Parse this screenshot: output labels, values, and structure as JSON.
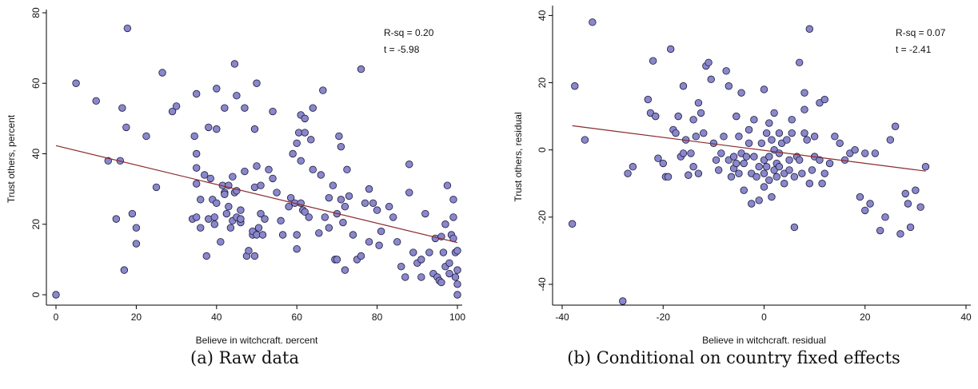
{
  "chart_data": [
    {
      "type": "scatter",
      "caption": "(a) Raw data",
      "xlabel": "Believe in witchcraft, percent",
      "ylabel": "Trust others, percent",
      "xlim": [
        0,
        100
      ],
      "ylim": [
        0,
        80
      ],
      "xticks": [
        0,
        20,
        40,
        60,
        80,
        100
      ],
      "yticks": [
        0,
        20,
        40,
        60,
        80
      ],
      "stats": [
        "R-sq = 0.20",
        "t = -5.98"
      ],
      "fit": {
        "x1": 0,
        "y1": 42.3,
        "x2": 100,
        "y2": 14.8
      },
      "colors": {
        "point_fill": "#8a87cc",
        "point_edge": "#1a1a3a",
        "fit_line": "#8b2a2a"
      },
      "points": [
        [
          0,
          0
        ],
        [
          5,
          60
        ],
        [
          10,
          55
        ],
        [
          13,
          38
        ],
        [
          15,
          21.5
        ],
        [
          16,
          38
        ],
        [
          16.5,
          53
        ],
        [
          17,
          7
        ],
        [
          17.5,
          47.5
        ],
        [
          17.8,
          75.6
        ],
        [
          19,
          23
        ],
        [
          20,
          19
        ],
        [
          20,
          14.5
        ],
        [
          22.5,
          45
        ],
        [
          25,
          30.5
        ],
        [
          26.5,
          63
        ],
        [
          29,
          52
        ],
        [
          30,
          53.5
        ],
        [
          34,
          21.5
        ],
        [
          34.5,
          45
        ],
        [
          35,
          57
        ],
        [
          35,
          40
        ],
        [
          35,
          36
        ],
        [
          35,
          31.5
        ],
        [
          35,
          22
        ],
        [
          36,
          19
        ],
        [
          36,
          27
        ],
        [
          37,
          34
        ],
        [
          37.5,
          11
        ],
        [
          38,
          47.5
        ],
        [
          38,
          21.5
        ],
        [
          38.5,
          33
        ],
        [
          39,
          27
        ],
        [
          39.5,
          20
        ],
        [
          39.5,
          22
        ],
        [
          40,
          47
        ],
        [
          40,
          58.5
        ],
        [
          40,
          26
        ],
        [
          41,
          15
        ],
        [
          41.5,
          31
        ],
        [
          42,
          53
        ],
        [
          42,
          29
        ],
        [
          42,
          28.5
        ],
        [
          42.5,
          23
        ],
        [
          43,
          31
        ],
        [
          43,
          25
        ],
        [
          43.5,
          19
        ],
        [
          44,
          21
        ],
        [
          44,
          33.5
        ],
        [
          44.5,
          29
        ],
        [
          44.5,
          65.5
        ],
        [
          45,
          56.5
        ],
        [
          45,
          22
        ],
        [
          45,
          29.5
        ],
        [
          46,
          24
        ],
        [
          46,
          20.5
        ],
        [
          46,
          21.5
        ],
        [
          47,
          53
        ],
        [
          47,
          35
        ],
        [
          47.5,
          11
        ],
        [
          48,
          12.5
        ],
        [
          49,
          17
        ],
        [
          49,
          18
        ],
        [
          49.5,
          11
        ],
        [
          49.5,
          47
        ],
        [
          49.5,
          30.5
        ],
        [
          50,
          36.5
        ],
        [
          50,
          17
        ],
        [
          50,
          60
        ],
        [
          50.5,
          19
        ],
        [
          51,
          23
        ],
        [
          51,
          31
        ],
        [
          51.5,
          17
        ],
        [
          52,
          21.5
        ],
        [
          53,
          35.5
        ],
        [
          54,
          52
        ],
        [
          54,
          33
        ],
        [
          55,
          29
        ],
        [
          56,
          21
        ],
        [
          56.5,
          17
        ],
        [
          58,
          25
        ],
        [
          58.5,
          27.5
        ],
        [
          59,
          40
        ],
        [
          59.5,
          26
        ],
        [
          60,
          43
        ],
        [
          60,
          17
        ],
        [
          60,
          13
        ],
        [
          60.5,
          46
        ],
        [
          61,
          26
        ],
        [
          61,
          51
        ],
        [
          61,
          38
        ],
        [
          61.5,
          24
        ],
        [
          62,
          50
        ],
        [
          62,
          46
        ],
        [
          62,
          23.5
        ],
        [
          63,
          22
        ],
        [
          63.5,
          44
        ],
        [
          64,
          35.5
        ],
        [
          64,
          53
        ],
        [
          65.5,
          17.5
        ],
        [
          66,
          34
        ],
        [
          66.5,
          58
        ],
        [
          67,
          22
        ],
        [
          68,
          19
        ],
        [
          68,
          27.5
        ],
        [
          69,
          31
        ],
        [
          69.5,
          10
        ],
        [
          70,
          23
        ],
        [
          70,
          10
        ],
        [
          70.5,
          45
        ],
        [
          71,
          42
        ],
        [
          71,
          27
        ],
        [
          71.5,
          20.5
        ],
        [
          72,
          25
        ],
        [
          72,
          7
        ],
        [
          72.5,
          35.5
        ],
        [
          73,
          28
        ],
        [
          74,
          17
        ],
        [
          75,
          10
        ],
        [
          76,
          64
        ],
        [
          76,
          11
        ],
        [
          77,
          26
        ],
        [
          78,
          30
        ],
        [
          78,
          15
        ],
        [
          79,
          26
        ],
        [
          80,
          24
        ],
        [
          80.5,
          14
        ],
        [
          81,
          18
        ],
        [
          83,
          25
        ],
        [
          84,
          22
        ],
        [
          85,
          15
        ],
        [
          86,
          8
        ],
        [
          87,
          5
        ],
        [
          88,
          37
        ],
        [
          88,
          29
        ],
        [
          89,
          12
        ],
        [
          90,
          9
        ],
        [
          91,
          5
        ],
        [
          91,
          10
        ],
        [
          92,
          23
        ],
        [
          93,
          12
        ],
        [
          94,
          6
        ],
        [
          94.5,
          16
        ],
        [
          95,
          5
        ],
        [
          95.5,
          4
        ],
        [
          96,
          16.5
        ],
        [
          96,
          3.5
        ],
        [
          96.5,
          12
        ],
        [
          97,
          20
        ],
        [
          97,
          8
        ],
        [
          97.5,
          31
        ],
        [
          98,
          9
        ],
        [
          98,
          6
        ],
        [
          98.5,
          17
        ],
        [
          99,
          27
        ],
        [
          99,
          22
        ],
        [
          99,
          16
        ],
        [
          99.5,
          5
        ],
        [
          99.5,
          12
        ],
        [
          100,
          3
        ],
        [
          100,
          7
        ],
        [
          100,
          12.5
        ],
        [
          100,
          0
        ]
      ]
    },
    {
      "type": "scatter",
      "caption": "(b) Conditional on country fixed effects",
      "xlabel": "Believe in witchcraft, residual",
      "ylabel": "Trust others, residual",
      "xlim": [
        -40,
        40
      ],
      "ylim": [
        -45,
        42
      ],
      "xticks": [
        -40,
        -20,
        0,
        20,
        40
      ],
      "yticks": [
        -40,
        -20,
        0,
        20,
        40
      ],
      "stats": [
        "R-sq = 0.07",
        "t = -2.41"
      ],
      "fit": {
        "x1": -38,
        "y1": 7.2,
        "x2": 32,
        "y2": -6.3
      },
      "colors": {
        "point_fill": "#8a87cc",
        "point_edge": "#1a1a3a",
        "fit_line": "#8b2a2a"
      },
      "points": [
        [
          -38,
          -22
        ],
        [
          -37.5,
          19
        ],
        [
          -35.5,
          3
        ],
        [
          -34,
          38
        ],
        [
          -28,
          -45
        ],
        [
          -27,
          -7
        ],
        [
          -26,
          -5
        ],
        [
          -23,
          15
        ],
        [
          -22.5,
          11
        ],
        [
          -22,
          26.5
        ],
        [
          -21.5,
          10
        ],
        [
          -21,
          -2.5
        ],
        [
          -20,
          -4
        ],
        [
          -19.5,
          -8
        ],
        [
          -19,
          -8
        ],
        [
          -18.5,
          30
        ],
        [
          -18,
          6
        ],
        [
          -17.5,
          5
        ],
        [
          -17,
          10
        ],
        [
          -16.5,
          -2
        ],
        [
          -16,
          -1
        ],
        [
          -16,
          19
        ],
        [
          -15.5,
          3
        ],
        [
          -15,
          -7.5
        ],
        [
          -14.5,
          -1
        ],
        [
          -14,
          9
        ],
        [
          -14,
          -5
        ],
        [
          -13.5,
          4
        ],
        [
          -13,
          14
        ],
        [
          -13,
          -7
        ],
        [
          -12.5,
          11
        ],
        [
          -12,
          5
        ],
        [
          -11.5,
          25
        ],
        [
          -11,
          26
        ],
        [
          -10.5,
          21
        ],
        [
          -10,
          2
        ],
        [
          -9.5,
          -3
        ],
        [
          -9,
          -6
        ],
        [
          -8.5,
          -1
        ],
        [
          -8,
          4
        ],
        [
          -7.5,
          23.5
        ],
        [
          -7,
          19
        ],
        [
          -7,
          -3
        ],
        [
          -6.5,
          -8
        ],
        [
          -6,
          -5.5
        ],
        [
          -6,
          -2
        ],
        [
          -5.5,
          10
        ],
        [
          -5.5,
          -4
        ],
        [
          -5,
          -7
        ],
        [
          -5,
          4
        ],
        [
          -4.5,
          -1
        ],
        [
          -4.5,
          17
        ],
        [
          -4,
          -12
        ],
        [
          -4,
          -4
        ],
        [
          -3.5,
          -2
        ],
        [
          -3,
          6
        ],
        [
          -3,
          2
        ],
        [
          -2.5,
          -16
        ],
        [
          -2.5,
          -7
        ],
        [
          -2,
          9
        ],
        [
          -2,
          -2
        ],
        [
          -1.5,
          -8
        ],
        [
          -1,
          -5
        ],
        [
          -1,
          -15
        ],
        [
          -0.5,
          2
        ],
        [
          0,
          18
        ],
        [
          0,
          -3
        ],
        [
          0,
          -11
        ],
        [
          0,
          -7
        ],
        [
          0.5,
          5
        ],
        [
          0.5,
          -5
        ],
        [
          1,
          -9
        ],
        [
          1,
          -2
        ],
        [
          1,
          8
        ],
        [
          1.5,
          -14
        ],
        [
          1.5,
          3
        ],
        [
          2,
          -6
        ],
        [
          2,
          11
        ],
        [
          2,
          0
        ],
        [
          2.5,
          -4
        ],
        [
          2.5,
          -8
        ],
        [
          3,
          5
        ],
        [
          3,
          -5
        ],
        [
          3,
          -1
        ],
        [
          3.5,
          2
        ],
        [
          4,
          -7
        ],
        [
          4,
          -10
        ],
        [
          4.5,
          3
        ],
        [
          5,
          -6
        ],
        [
          5,
          -3
        ],
        [
          5.5,
          9
        ],
        [
          5.5,
          5
        ],
        [
          6,
          -8
        ],
        [
          6,
          -23
        ],
        [
          6.5,
          -2
        ],
        [
          7,
          -3
        ],
        [
          7,
          26
        ],
        [
          7.5,
          -7
        ],
        [
          8,
          17
        ],
        [
          8,
          12
        ],
        [
          8,
          5
        ],
        [
          8.5,
          3
        ],
        [
          9,
          36
        ],
        [
          9,
          -10
        ],
        [
          9.5,
          -6
        ],
        [
          10,
          4
        ],
        [
          10,
          -2
        ],
        [
          11,
          14
        ],
        [
          11,
          -3
        ],
        [
          11.5,
          -10
        ],
        [
          12,
          15
        ],
        [
          12,
          -7
        ],
        [
          13,
          -4
        ],
        [
          14,
          4
        ],
        [
          15,
          2
        ],
        [
          16,
          -3
        ],
        [
          17,
          -1
        ],
        [
          18,
          0
        ],
        [
          19,
          -14
        ],
        [
          20,
          -18
        ],
        [
          20,
          -1
        ],
        [
          21,
          -16
        ],
        [
          22,
          -1
        ],
        [
          23,
          -24
        ],
        [
          24,
          -20
        ],
        [
          25,
          3
        ],
        [
          26,
          7
        ],
        [
          27,
          -25
        ],
        [
          28,
          -13
        ],
        [
          28.5,
          -16
        ],
        [
          29,
          -23
        ],
        [
          30,
          -12
        ],
        [
          31,
          -17
        ],
        [
          32,
          -5
        ]
      ]
    }
  ]
}
